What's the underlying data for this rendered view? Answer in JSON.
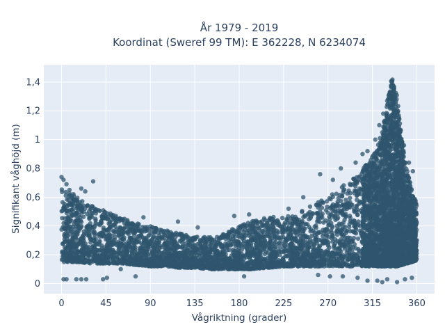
{
  "chart_data": {
    "type": "scatter",
    "title": [
      "År 1979 - 2019",
      "Koordinat (Sweref 99 TM): E 362228, N 6234074"
    ],
    "xlabel": "Vågriktning (grader)",
    "ylabel": "Signifikant våghöjd (m)",
    "xlim": [
      -18,
      378
    ],
    "ylim": [
      -0.07,
      1.52
    ],
    "xticks": [
      0,
      45,
      90,
      135,
      180,
      225,
      270,
      315,
      360
    ],
    "xtick_labels": [
      "0",
      "45",
      "90",
      "135",
      "180",
      "225",
      "270",
      "315",
      "360"
    ],
    "yticks": [
      0,
      0.2,
      0.4,
      0.6,
      0.8,
      1.0,
      1.2,
      1.4
    ],
    "ytick_labels": [
      "0",
      "0,2",
      "0,4",
      "0,6",
      "0,8",
      "1",
      "1,2",
      "1,4"
    ],
    "grid": true,
    "colors": {
      "marker": "#2f566d",
      "plot_background": "#e5ecf6",
      "grid": "#ffffff",
      "text": "#2a3f5f"
    },
    "envelope": {
      "description_direction": [
        0,
        15,
        30,
        45,
        60,
        75,
        90,
        105,
        120,
        135,
        150,
        165,
        180,
        195,
        210,
        225,
        240,
        255,
        270,
        285,
        300,
        315,
        325,
        330,
        335,
        340,
        345,
        350,
        355,
        360
      ],
      "lower": [
        0.15,
        0.15,
        0.14,
        0.14,
        0.14,
        0.13,
        0.12,
        0.12,
        0.11,
        0.11,
        0.1,
        0.1,
        0.1,
        0.1,
        0.11,
        0.12,
        0.12,
        0.12,
        0.12,
        0.12,
        0.12,
        0.12,
        0.12,
        0.12,
        0.12,
        0.12,
        0.13,
        0.14,
        0.15,
        0.16
      ],
      "upper": [
        0.66,
        0.6,
        0.55,
        0.5,
        0.46,
        0.42,
        0.4,
        0.37,
        0.35,
        0.33,
        0.33,
        0.35,
        0.4,
        0.44,
        0.46,
        0.47,
        0.5,
        0.55,
        0.6,
        0.68,
        0.75,
        0.88,
        1.05,
        1.25,
        1.45,
        1.3,
        1.0,
        0.8,
        0.65,
        0.55
      ]
    },
    "outliers": [
      [
        0,
        0.74
      ],
      [
        2,
        0.72
      ],
      [
        5,
        0.69
      ],
      [
        8,
        0.65
      ],
      [
        12,
        0.62
      ],
      [
        20,
        0.66
      ],
      [
        24,
        0.64
      ],
      [
        32,
        0.71
      ],
      [
        2,
        0.03
      ],
      [
        5,
        0.03
      ],
      [
        15,
        0.03
      ],
      [
        20,
        0.03
      ],
      [
        25,
        0.03
      ],
      [
        42,
        0.03
      ],
      [
        46,
        0.04
      ],
      [
        60,
        0.1
      ],
      [
        75,
        0.05
      ],
      [
        55,
        0.47
      ],
      [
        83,
        0.46
      ],
      [
        118,
        0.43
      ],
      [
        138,
        0.39
      ],
      [
        175,
        0.47
      ],
      [
        185,
        0.05
      ],
      [
        190,
        0.48
      ],
      [
        230,
        0.52
      ],
      [
        245,
        0.6
      ],
      [
        262,
        0.76
      ],
      [
        275,
        0.72
      ],
      [
        283,
        0.8
      ],
      [
        298,
        0.84
      ],
      [
        305,
        0.9
      ],
      [
        310,
        0.92
      ],
      [
        318,
        1.0
      ],
      [
        322,
        1.1
      ],
      [
        326,
        1.18
      ],
      [
        330,
        1.27
      ],
      [
        326,
        0.98
      ],
      [
        345,
        0.98
      ],
      [
        347,
        0.96
      ],
      [
        352,
        0.84
      ],
      [
        356,
        0.78
      ],
      [
        260,
        0.06
      ],
      [
        272,
        0.05
      ],
      [
        285,
        0.05
      ],
      [
        300,
        0.04
      ],
      [
        310,
        0.02
      ],
      [
        320,
        0.02
      ],
      [
        325,
        0.01
      ],
      [
        330,
        0.03
      ],
      [
        340,
        0.01
      ],
      [
        348,
        0.03
      ],
      [
        355,
        0.04
      ]
    ]
  }
}
